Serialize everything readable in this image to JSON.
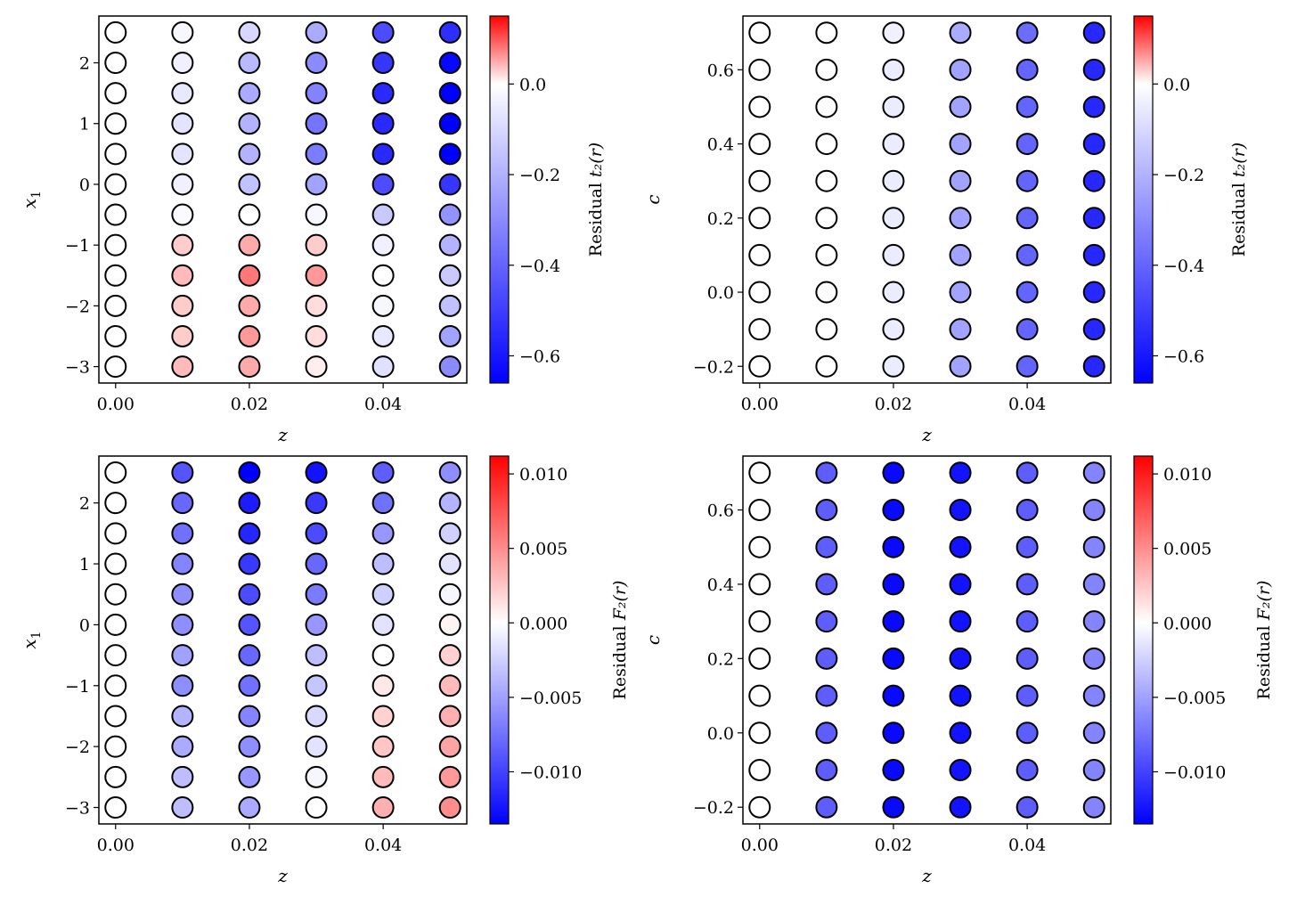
{
  "chart_data": [
    {
      "type": "scatter",
      "xlabel": "z",
      "ylabel": "x",
      "ylabel_sub": "1",
      "x_ticks": [
        "0.00",
        "0.02",
        "0.04"
      ],
      "y_ticks": [
        "−3",
        "−2",
        "−1",
        "0",
        "1",
        "2"
      ],
      "xlim": [
        -0.0025,
        0.0525
      ],
      "ylim": [
        -3.27,
        2.77
      ],
      "grid": false,
      "colormap": "bwr",
      "colorbar": {
        "label": "Residual ",
        "label_math": "t₂(r)",
        "range": [
          -0.66,
          0.15
        ],
        "ticks": [
          "0.0",
          "−0.2",
          "−0.4",
          "−0.6"
        ],
        "tick_values": [
          0.0,
          -0.2,
          -0.4,
          -0.6
        ]
      },
      "x": [
        0.0,
        0.01,
        0.02,
        0.03,
        0.04,
        0.05
      ],
      "y": [
        2.5,
        2.0,
        1.5,
        1.0,
        0.5,
        0.0,
        -0.5,
        -1.0,
        -1.5,
        -2.0,
        -2.5,
        -3.0
      ],
      "values": [
        [
          0,
          -0.02,
          -0.1,
          -0.22,
          -0.46,
          -0.54
        ],
        [
          0,
          -0.04,
          -0.18,
          -0.3,
          -0.52,
          -0.64
        ],
        [
          0,
          -0.06,
          -0.22,
          -0.32,
          -0.55,
          -0.66
        ],
        [
          0,
          -0.07,
          -0.2,
          -0.36,
          -0.55,
          -0.66
        ],
        [
          0,
          -0.07,
          -0.2,
          -0.34,
          -0.55,
          -0.66
        ],
        [
          0,
          -0.04,
          -0.16,
          -0.24,
          -0.46,
          -0.52
        ],
        [
          0,
          -0.01,
          0.0,
          -0.02,
          -0.14,
          -0.28
        ],
        [
          0,
          0.03,
          0.05,
          0.03,
          -0.04,
          -0.2
        ],
        [
          0,
          0.04,
          0.08,
          0.06,
          0.0,
          -0.14
        ],
        [
          0,
          0.03,
          0.05,
          0.02,
          -0.02,
          -0.16
        ],
        [
          0,
          0.03,
          0.06,
          0.02,
          -0.06,
          -0.24
        ],
        [
          0,
          0.04,
          0.05,
          0.01,
          -0.08,
          -0.3
        ]
      ]
    },
    {
      "type": "scatter",
      "xlabel": "z",
      "ylabel": "c",
      "ylabel_sub": "",
      "x_ticks": [
        "0.00",
        "0.02",
        "0.04"
      ],
      "y_ticks": [
        "−0.2",
        "0.0",
        "0.2",
        "0.4",
        "0.6"
      ],
      "xlim": [
        -0.0025,
        0.0525
      ],
      "ylim": [
        -0.245,
        0.745
      ],
      "grid": false,
      "colormap": "bwr",
      "colorbar": {
        "label": "Residual ",
        "label_math": "t₂(r)",
        "range": [
          -0.66,
          0.15
        ],
        "ticks": [
          "0.0",
          "−0.2",
          "−0.4",
          "−0.6"
        ],
        "tick_values": [
          0.0,
          -0.2,
          -0.4,
          -0.6
        ]
      },
      "x": [
        0.0,
        0.01,
        0.02,
        0.03,
        0.04,
        0.05
      ],
      "y": [
        0.7,
        0.6,
        0.5,
        0.4,
        0.3,
        0.2,
        0.1,
        0.0,
        -0.1,
        -0.2
      ],
      "values": [
        [
          0,
          0,
          -0.04,
          -0.22,
          -0.38,
          -0.56
        ],
        [
          0,
          0,
          -0.05,
          -0.24,
          -0.4,
          -0.56
        ],
        [
          0,
          0,
          -0.05,
          -0.24,
          -0.4,
          -0.56
        ],
        [
          0,
          0,
          -0.05,
          -0.24,
          -0.4,
          -0.56
        ],
        [
          0,
          0,
          -0.05,
          -0.24,
          -0.4,
          -0.56
        ],
        [
          0,
          0,
          -0.05,
          -0.24,
          -0.4,
          -0.56
        ],
        [
          0,
          0,
          -0.05,
          -0.24,
          -0.4,
          -0.56
        ],
        [
          0,
          0,
          -0.05,
          -0.24,
          -0.4,
          -0.56
        ],
        [
          0,
          0,
          -0.05,
          -0.24,
          -0.4,
          -0.56
        ],
        [
          0,
          0,
          -0.05,
          -0.24,
          -0.4,
          -0.56
        ]
      ]
    },
    {
      "type": "scatter",
      "xlabel": "z",
      "ylabel": "x",
      "ylabel_sub": "1",
      "x_ticks": [
        "0.00",
        "0.02",
        "0.04"
      ],
      "y_ticks": [
        "−3",
        "−2",
        "−1",
        "0",
        "1",
        "2"
      ],
      "xlim": [
        -0.0025,
        0.0525
      ],
      "ylim": [
        -3.27,
        2.77
      ],
      "grid": false,
      "colormap": "bwr",
      "colorbar": {
        "label": "Residual ",
        "label_math": "F₂(r)",
        "range": [
          -0.0135,
          0.0112
        ],
        "ticks": [
          "0.010",
          "0.005",
          "0.000",
          "−0.005",
          "−0.010"
        ],
        "tick_values": [
          0.01,
          0.005,
          0.0,
          -0.005,
          -0.01
        ]
      },
      "x": [
        0.0,
        0.01,
        0.02,
        0.03,
        0.04,
        0.05
      ],
      "y": [
        2.5,
        2.0,
        1.5,
        1.0,
        0.5,
        0.0,
        -0.5,
        -1.0,
        -1.5,
        -2.0,
        -2.5,
        -3.0
      ],
      "values": [
        [
          0,
          -0.009,
          -0.0135,
          -0.0125,
          -0.0085,
          -0.006
        ],
        [
          0,
          -0.008,
          -0.012,
          -0.0105,
          -0.0075,
          -0.004
        ],
        [
          0,
          -0.0075,
          -0.0115,
          -0.0095,
          -0.0055,
          -0.0025
        ],
        [
          0,
          -0.0065,
          -0.0105,
          -0.008,
          -0.0035,
          -0.0015
        ],
        [
          0,
          -0.006,
          -0.0095,
          -0.007,
          -0.0025,
          -0.0005
        ],
        [
          0,
          -0.006,
          -0.009,
          -0.0055,
          -0.0015,
          0.0005
        ],
        [
          0,
          -0.005,
          -0.008,
          -0.0035,
          0.0,
          0.002
        ],
        [
          0,
          -0.006,
          -0.0075,
          -0.003,
          0.001,
          0.003
        ],
        [
          0,
          -0.004,
          -0.0065,
          -0.002,
          0.002,
          0.0035
        ],
        [
          0,
          -0.0045,
          -0.006,
          -0.0015,
          0.0025,
          0.004
        ],
        [
          0,
          -0.0035,
          -0.0055,
          -0.0005,
          0.003,
          0.0045
        ],
        [
          0,
          -0.0035,
          -0.0045,
          0.0,
          0.0035,
          0.005
        ]
      ]
    },
    {
      "type": "scatter",
      "xlabel": "z",
      "ylabel": "c",
      "ylabel_sub": "",
      "x_ticks": [
        "0.00",
        "0.02",
        "0.04"
      ],
      "y_ticks": [
        "−0.2",
        "0.0",
        "0.2",
        "0.4",
        "0.6"
      ],
      "xlim": [
        -0.0025,
        0.0525
      ],
      "ylim": [
        -0.245,
        0.745
      ],
      "grid": false,
      "colormap": "bwr",
      "colorbar": {
        "label": "Residual ",
        "label_math": "F₂(r)",
        "range": [
          -0.0135,
          0.0112
        ],
        "ticks": [
          "0.010",
          "0.005",
          "0.000",
          "−0.005",
          "−0.010"
        ],
        "tick_values": [
          0.01,
          0.005,
          0.0,
          -0.005,
          -0.01
        ]
      },
      "x": [
        0.0,
        0.01,
        0.02,
        0.03,
        0.04,
        0.05
      ],
      "y": [
        0.7,
        0.6,
        0.5,
        0.4,
        0.3,
        0.2,
        0.1,
        0.0,
        -0.1,
        -0.2
      ],
      "values": [
        [
          0,
          -0.0085,
          -0.013,
          -0.0125,
          -0.0085,
          -0.0065
        ],
        [
          0,
          -0.0085,
          -0.013,
          -0.0125,
          -0.0085,
          -0.0065
        ],
        [
          0,
          -0.0085,
          -0.013,
          -0.0125,
          -0.0085,
          -0.0065
        ],
        [
          0,
          -0.0085,
          -0.013,
          -0.0125,
          -0.0085,
          -0.0065
        ],
        [
          0,
          -0.0085,
          -0.013,
          -0.0125,
          -0.0085,
          -0.0065
        ],
        [
          0,
          -0.0085,
          -0.013,
          -0.0125,
          -0.0085,
          -0.0065
        ],
        [
          0,
          -0.0085,
          -0.013,
          -0.0125,
          -0.0085,
          -0.0065
        ],
        [
          0,
          -0.0085,
          -0.013,
          -0.0125,
          -0.0085,
          -0.0065
        ],
        [
          0,
          -0.0085,
          -0.013,
          -0.0125,
          -0.0085,
          -0.0065
        ],
        [
          0,
          -0.0085,
          -0.013,
          -0.0125,
          -0.0085,
          -0.0065
        ]
      ]
    }
  ]
}
